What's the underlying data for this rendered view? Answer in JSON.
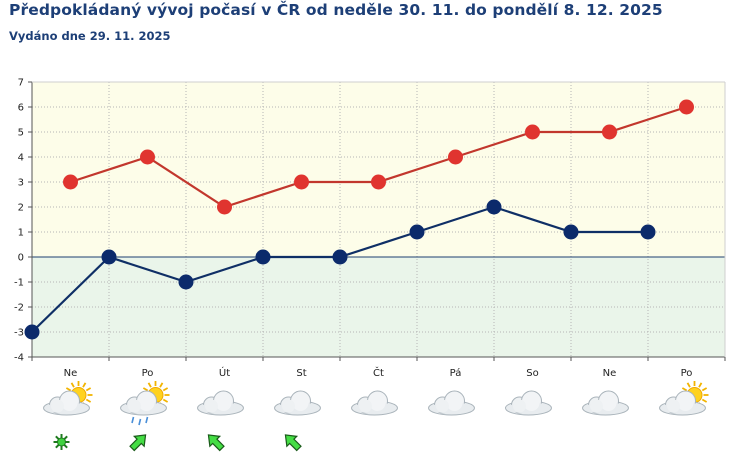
{
  "title": "Předpokládaný vývoj počasí v ČR od neděle 30. 11. do pondělí 8. 12. 2025",
  "subtitle": "Vydáno dne 29. 11. 2025",
  "chart_data": {
    "type": "line",
    "categories": [
      "Ne",
      "Po",
      "Út",
      "St",
      "Čt",
      "Pá",
      "So",
      "Ne",
      "Po"
    ],
    "yticks": [
      -4,
      -3,
      -2,
      -1,
      0,
      1,
      2,
      3,
      4,
      5,
      6,
      7
    ],
    "ylim": [
      -4,
      7
    ],
    "grid": true,
    "series": [
      {
        "values": [
          3,
          4,
          2,
          3,
          3,
          4,
          5,
          5,
          6
        ],
        "color": "#e0342f",
        "line_color": "#c2372d"
      },
      {
        "values": [
          -3,
          0,
          -1,
          0,
          0,
          1,
          2,
          1,
          1
        ],
        "color": "#0b2a6b",
        "line_color": "#0f2f66"
      }
    ],
    "background": {
      "above_zero": "#fdfde9",
      "below_zero": "#eaf5ea"
    },
    "weather_icons": [
      "partly-cloudy-icon",
      "partly-cloudy-rain-icon",
      "cloudy-icon",
      "cloudy-icon",
      "cloudy-icon",
      "cloudy-icon",
      "cloudy-icon",
      "cloudy-icon",
      "partly-cloudy-icon"
    ],
    "wind_icons": [
      "calm-wind-icon",
      "wind-southwest-icon",
      "wind-southeast-icon",
      "wind-southeast-icon",
      "",
      "",
      "",
      "",
      ""
    ]
  }
}
